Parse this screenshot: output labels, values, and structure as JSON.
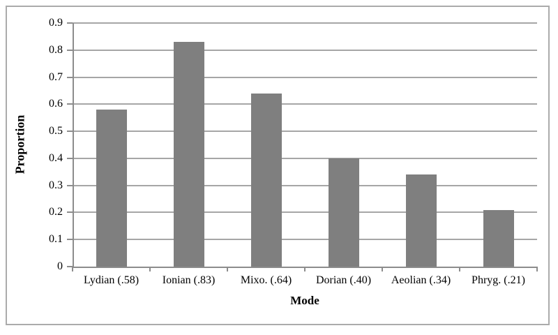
{
  "chart_data": {
    "type": "bar",
    "title": "",
    "categories": [
      "Lydian (.58)",
      "Ionian (.83)",
      "Mixo. (.64)",
      "Dorian (.40)",
      "Aeolian (.34)",
      "Phryg. (.21)"
    ],
    "values": [
      0.58,
      0.83,
      0.64,
      0.4,
      0.34,
      0.21
    ],
    "xlabel": "Mode",
    "ylabel": "Proportion",
    "ylim": [
      0,
      0.9
    ],
    "yticks": [
      0,
      0.1,
      0.2,
      0.3,
      0.4,
      0.5,
      0.6,
      0.7,
      0.8,
      0.9
    ],
    "ytick_labels": [
      "0",
      "0.1",
      "0.2",
      "0.3",
      "0.4",
      "0.5",
      "0.6",
      "0.7",
      "0.8",
      "0.9"
    ],
    "grid": true,
    "legend": false,
    "colors": {
      "bar": "#7f7f7f",
      "gridline": "#a6a6a6",
      "axis": "#8c8c8c",
      "text": "#000000",
      "figure_border": "#ababab",
      "background": "#ffffff"
    }
  }
}
